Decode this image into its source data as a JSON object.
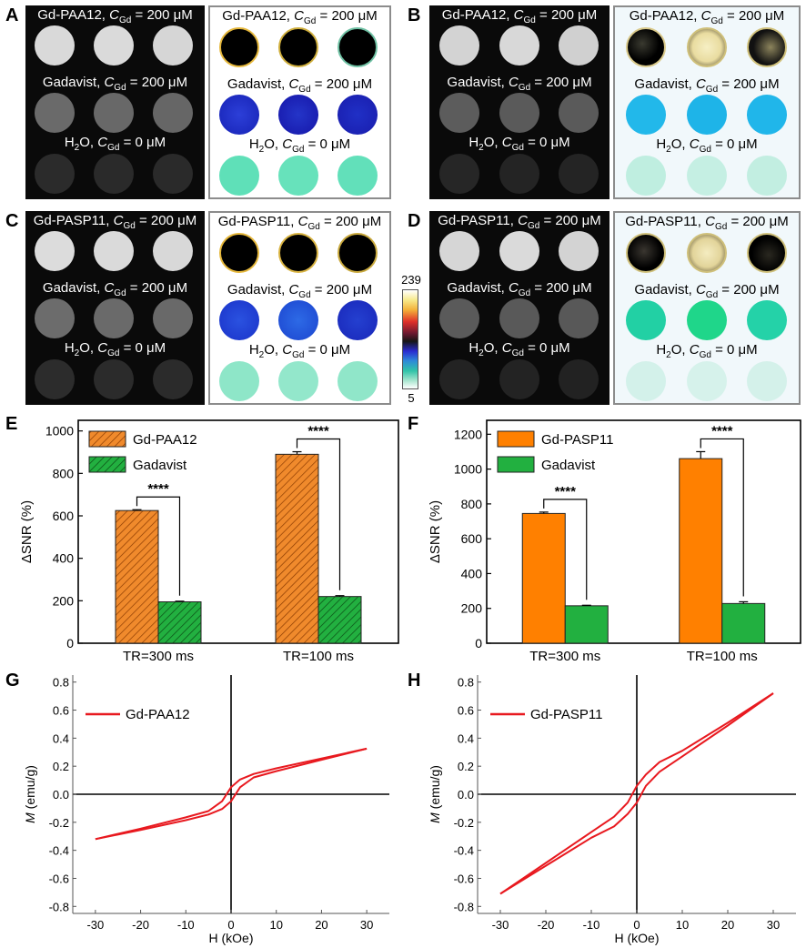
{
  "panels": {
    "A": "A",
    "B": "B",
    "C": "C",
    "D": "D",
    "E": "E",
    "F": "F",
    "G": "G",
    "H": "H"
  },
  "image_labels": {
    "paa_prefix": "Gd-PAA12, ",
    "pasp_prefix": "Gd-PASP11, ",
    "gadavist_prefix": "Gadavist, ",
    "water_prefix": "H",
    "water_sub": "2",
    "water_rest": "O, ",
    "c_symbol": "C",
    "c_sub": "Gd",
    "conc_200": " = 200 μM",
    "conc_0": " = 0 μM"
  },
  "colorbar": {
    "max": "239",
    "min": "5"
  },
  "colors": {
    "gd_paa12_bar": "#f08a2c",
    "gd_pasp11_bar": "#ff8000",
    "gadavist_bar": "#22b040",
    "curve": "#e8191f"
  },
  "chart_data": [
    {
      "panel": "E",
      "type": "bar",
      "categories": [
        "TR=300 ms",
        "TR=100 ms"
      ],
      "ylabel": "ΔSNR (%)",
      "ylim": [
        0,
        1050
      ],
      "yticks": [
        0,
        200,
        400,
        600,
        800,
        1000
      ],
      "hatched": true,
      "series": [
        {
          "name": "Gd-PAA12",
          "values": [
            625,
            890
          ],
          "errors": [
            4,
            12
          ]
        },
        {
          "name": "Gadavist",
          "values": [
            195,
            220
          ],
          "errors": [
            3,
            4
          ]
        }
      ],
      "significance": [
        "****",
        "****"
      ],
      "legend": "top-left"
    },
    {
      "panel": "F",
      "type": "bar",
      "categories": [
        "TR=300 ms",
        "TR=100 ms"
      ],
      "ylabel": "ΔSNR (%)",
      "ylim": [
        0,
        1280
      ],
      "yticks": [
        0,
        200,
        400,
        600,
        800,
        1000,
        1200
      ],
      "hatched": false,
      "series": [
        {
          "name": "Gd-PASP11",
          "values": [
            745,
            1060
          ],
          "errors": [
            8,
            40
          ]
        },
        {
          "name": "Gadavist",
          "values": [
            215,
            228
          ],
          "errors": [
            3,
            10
          ]
        }
      ],
      "significance": [
        "****",
        "****"
      ],
      "legend": "top-left"
    },
    {
      "panel": "G",
      "type": "line",
      "xlabel": "H (kOe)",
      "ylabel": "M (emu/g)",
      "xlim": [
        -35,
        35
      ],
      "ylim": [
        -0.85,
        0.85
      ],
      "xticks": [
        -30,
        -20,
        -10,
        0,
        10,
        20,
        30
      ],
      "yticks": [
        -0.8,
        -0.6,
        -0.4,
        -0.2,
        0.0,
        0.2,
        0.4,
        0.6,
        0.8
      ],
      "series": [
        {
          "name": "Gd-PAA12",
          "x": [
            -30,
            -20,
            -10,
            -5,
            -2,
            0,
            2,
            5,
            10,
            20,
            30
          ],
          "y_upper": [
            -0.32,
            -0.245,
            -0.165,
            -0.12,
            -0.05,
            0.05,
            0.105,
            0.145,
            0.185,
            0.255,
            0.325
          ],
          "y_lower": [
            -0.32,
            -0.255,
            -0.185,
            -0.145,
            -0.105,
            -0.05,
            0.05,
            0.12,
            0.165,
            0.245,
            0.325
          ]
        }
      ],
      "legend": "top-left"
    },
    {
      "panel": "H",
      "type": "line",
      "xlabel": "H (kOe)",
      "ylabel": "M (emu/g)",
      "xlim": [
        -35,
        35
      ],
      "ylim": [
        -0.85,
        0.85
      ],
      "xticks": [
        -30,
        -20,
        -10,
        0,
        10,
        20,
        30
      ],
      "yticks": [
        -0.8,
        -0.6,
        -0.4,
        -0.2,
        0.0,
        0.2,
        0.4,
        0.6,
        0.8
      ],
      "series": [
        {
          "name": "Gd-PASP11",
          "x": [
            -30,
            -20,
            -10,
            -5,
            -2,
            0,
            2,
            5,
            10,
            20,
            30
          ],
          "y_upper": [
            -0.71,
            -0.49,
            -0.27,
            -0.16,
            -0.06,
            0.06,
            0.14,
            0.23,
            0.31,
            0.51,
            0.72
          ],
          "y_lower": [
            -0.71,
            -0.51,
            -0.31,
            -0.23,
            -0.14,
            -0.06,
            0.06,
            0.16,
            0.27,
            0.49,
            0.72
          ]
        }
      ],
      "legend": "top-left"
    }
  ]
}
